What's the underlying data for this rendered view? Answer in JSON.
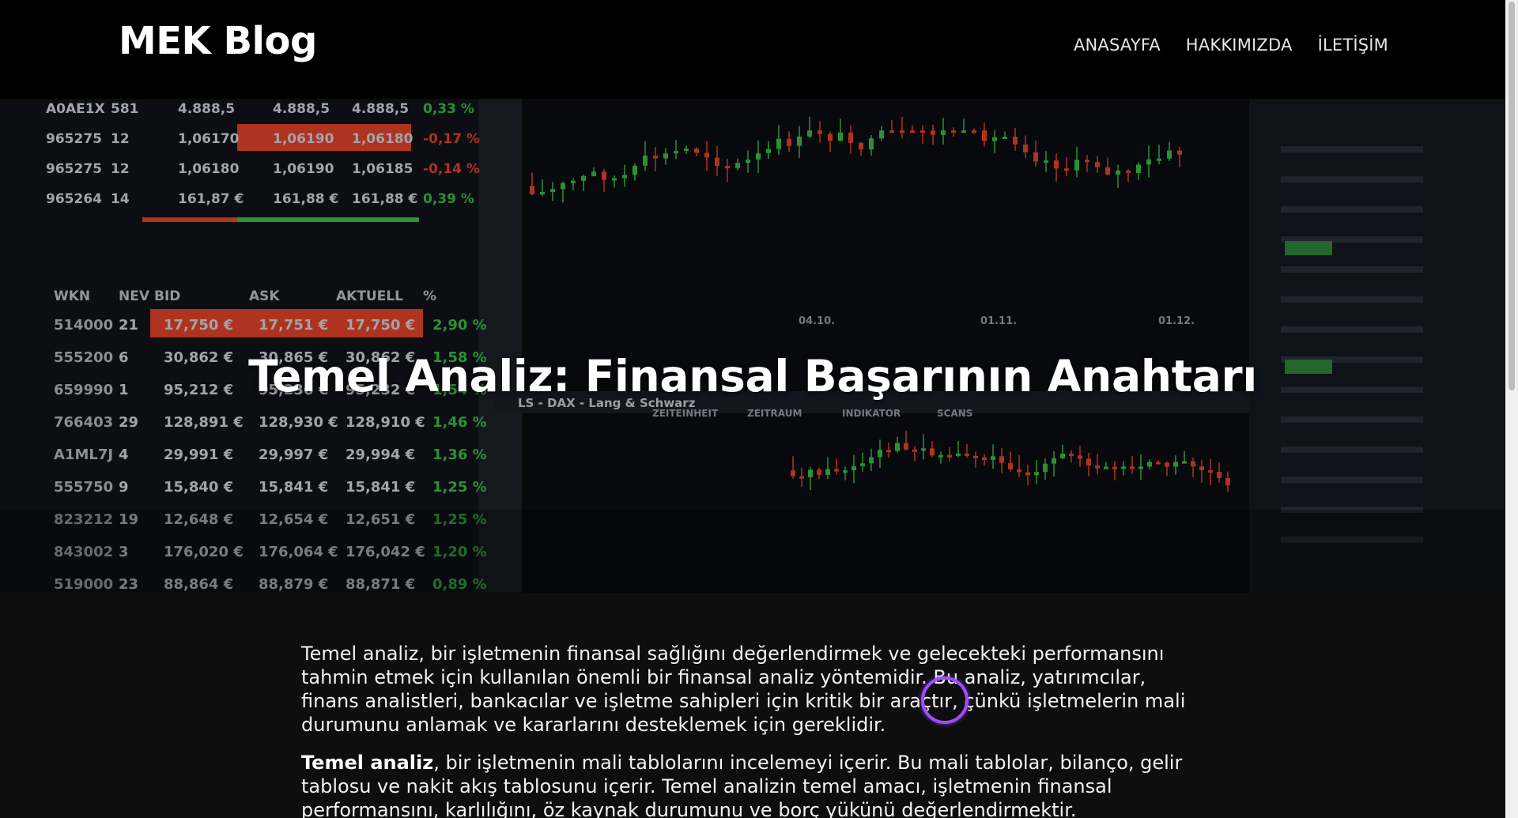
{
  "brand": "MEK Blog",
  "nav": {
    "items": [
      "ANASAYFA",
      "HAKKIMIZDA",
      "İLETİŞİM"
    ]
  },
  "hero": {
    "title": "Temel Analiz: Finansal Başarının Anahtarı"
  },
  "article": {
    "p1": "Temel analiz, bir işletmenin finansal sağlığını değerlendirmek ve gelecekteki performansını tahmin etmek için kullanılan önemli bir finansal analiz yöntemidir. Bu analiz, yatırımcılar, finans analistleri, bankacılar ve işletme sahipleri için kritik bir araçtır, çünkü işletmelerin mali durumunu anlamak ve kararlarını desteklemek için gereklidir.",
    "p2_bold": "Temel analiz",
    "p2_rest": ", bir işletmenin mali tablolarını incelemeyi içerir. Bu mali tablolar, bilanço, gelir tablosu ve nakit akış tablosunu içerir. Temel analizin temel amacı, işletmenin finansal performansını, karlılığını, öz kaynak durumunu ve borç yükünü değerlendirmektir."
  },
  "hero_image": {
    "table_top": [
      [
        "A0AE1X",
        "581",
        "4.888,5",
        "4.888,5",
        "4.888,5",
        "0,33 %"
      ],
      [
        "965275",
        "12",
        "1,06170",
        "1,06190",
        "1,06180",
        "-0,17 %"
      ],
      [
        "965275",
        "12",
        "1,06180",
        "1,06190",
        "1,06185",
        "-0,14 %"
      ],
      [
        "965264",
        "14",
        "161,87 €",
        "161,88 €",
        "161,88 €",
        "0,39 %"
      ]
    ],
    "table_headers": [
      "WKN",
      "NEV",
      "BID",
      "ASK",
      "AKTUELL",
      "%"
    ],
    "table_rows": [
      [
        "514000",
        "21",
        "17,750 €",
        "17,751 €",
        "17,750 €",
        "2,90 %"
      ],
      [
        "555200",
        "6",
        "30,862 €",
        "30,865 €",
        "30,862 €",
        "1,58 %"
      ],
      [
        "659990",
        "1",
        "95,212 €",
        "95,236 €",
        "95,232 €",
        "1,54 %"
      ],
      [
        "766403",
        "29",
        "128,891 €",
        "128,930 €",
        "128,910 €",
        "1,46 %"
      ],
      [
        "A1ML7J",
        "4",
        "29,991 €",
        "29,997 €",
        "29,994 €",
        "1,36 %"
      ],
      [
        "555750",
        "9",
        "15,840 €",
        "15,841 €",
        "15,841 €",
        "1,25 %"
      ],
      [
        "823212",
        "19",
        "12,648 €",
        "12,654 €",
        "12,651 €",
        "1,25 %"
      ],
      [
        "843002",
        "3",
        "176,020 €",
        "176,064 €",
        "176,042 €",
        "1,20 %"
      ],
      [
        "519000",
        "23",
        "88,864 €",
        "88,879 €",
        "88,871 €",
        "0,89 %"
      ]
    ],
    "chart_dates": [
      "04.10.",
      "01.11.",
      "01.12."
    ],
    "panel_label": "LS - DAX - Lang & Schwarz",
    "tabs": [
      "ZEITEINHEIT",
      "ZEITRAUM",
      "INDIKATOR",
      "SCANS"
    ],
    "colors": {
      "up": "#3bc14a",
      "down": "#e8452b",
      "highlight": "#e8452b"
    }
  }
}
